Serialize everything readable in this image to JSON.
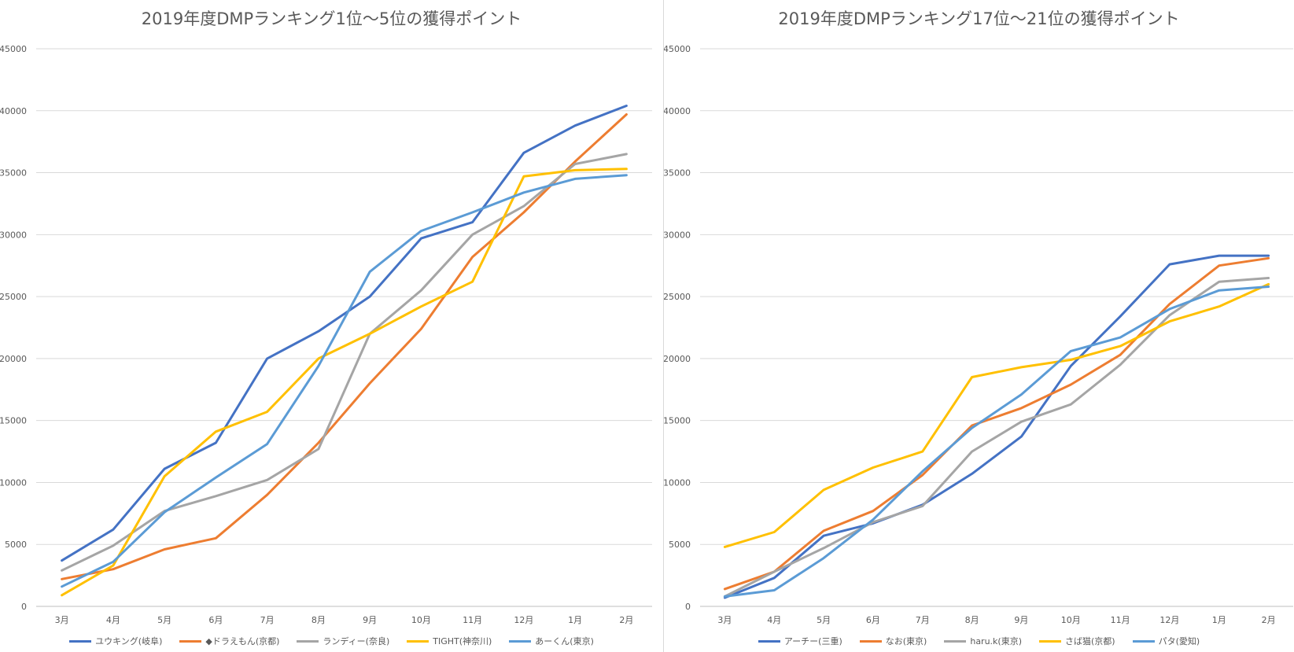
{
  "chart_data": [
    {
      "type": "line",
      "title": "2019年度DMPランキング1位～5位の獲得ポイント",
      "categories": [
        "3月",
        "4月",
        "5月",
        "6月",
        "7月",
        "8月",
        "9月",
        "10月",
        "11月",
        "12月",
        "1月",
        "2月"
      ],
      "yticks": [
        "0",
        "5000",
        "10000",
        "15000",
        "20000",
        "25000",
        "30000",
        "35000",
        "40000",
        "45000"
      ],
      "ylim": [
        0,
        45000
      ],
      "grid": true,
      "legend_position": "bottom",
      "series": [
        {
          "name": "ユウキング(岐阜)",
          "color": "#4472C4",
          "values": [
            3700,
            6200,
            11100,
            13200,
            20000,
            22200,
            25000,
            29700,
            31000,
            36600,
            38800,
            40400
          ]
        },
        {
          "name": "◆ドラえもん(京都)",
          "color": "#ED7D31",
          "values": [
            2200,
            3000,
            4600,
            5500,
            9000,
            13200,
            18000,
            22400,
            28200,
            31800,
            35900,
            39700
          ]
        },
        {
          "name": "ランディー(奈良)",
          "color": "#A5A5A5",
          "values": [
            2900,
            4900,
            7700,
            8900,
            10200,
            12700,
            22000,
            25500,
            30000,
            32300,
            35700,
            36500
          ]
        },
        {
          "name": "TIGHT(神奈川)",
          "color": "#FFC000",
          "values": [
            900,
            3300,
            10500,
            14100,
            15700,
            20000,
            22000,
            24200,
            26200,
            34700,
            35200,
            35300
          ]
        },
        {
          "name": "あーくん(東京)",
          "color": "#5B9BD5",
          "values": [
            1600,
            3600,
            7600,
            10400,
            13100,
            19400,
            27000,
            30300,
            31800,
            33400,
            34500,
            34800
          ]
        }
      ]
    },
    {
      "type": "line",
      "title": "2019年度DMPランキング17位～21位の獲得ポイント",
      "categories": [
        "3月",
        "4月",
        "5月",
        "6月",
        "7月",
        "8月",
        "9月",
        "10月",
        "11月",
        "12月",
        "1月",
        "2月"
      ],
      "yticks": [
        "0",
        "5000",
        "10000",
        "15000",
        "20000",
        "25000",
        "30000",
        "35000",
        "40000",
        "45000"
      ],
      "ylim": [
        0,
        45000
      ],
      "grid": true,
      "legend_position": "bottom",
      "series": [
        {
          "name": "アーチー(三重)",
          "color": "#4472C4",
          "values": [
            700,
            2300,
            5700,
            6700,
            8200,
            10700,
            13700,
            19400,
            23400,
            27600,
            28300,
            28300
          ]
        },
        {
          "name": "なお(東京)",
          "color": "#ED7D31",
          "values": [
            1400,
            2800,
            6100,
            7700,
            10600,
            14600,
            16000,
            17900,
            20300,
            24400,
            27500,
            28100
          ]
        },
        {
          "name": "haru.k(東京)",
          "color": "#A5A5A5",
          "values": [
            800,
            2800,
            4700,
            6800,
            8100,
            12500,
            14900,
            16300,
            19500,
            23500,
            26200,
            26500
          ]
        },
        {
          "name": "さば猫(京都)",
          "color": "#FFC000",
          "values": [
            4800,
            6000,
            9400,
            11200,
            12500,
            18500,
            19300,
            19900,
            21000,
            23000,
            24200,
            26000
          ]
        },
        {
          "name": "パタ(愛知)",
          "color": "#5B9BD5",
          "values": [
            800,
            1300,
            3900,
            7000,
            10900,
            14400,
            17100,
            20600,
            21700,
            24000,
            25500,
            25800
          ]
        }
      ]
    }
  ]
}
